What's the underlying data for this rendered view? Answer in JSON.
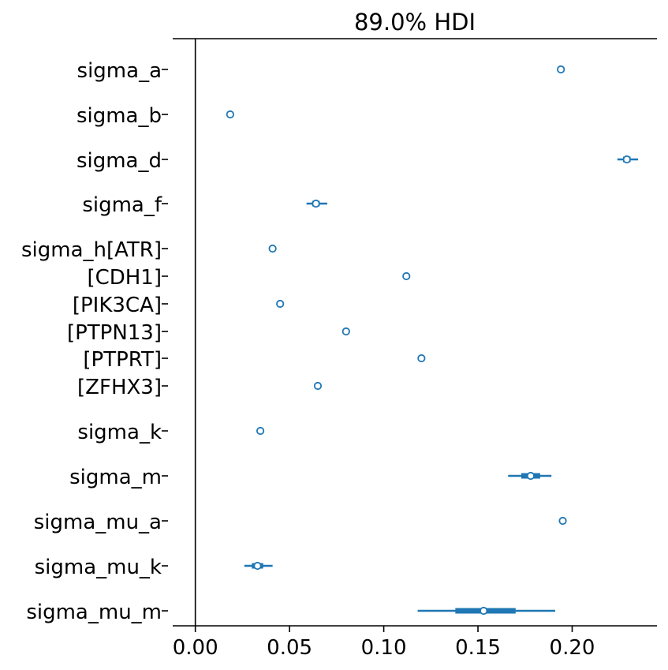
{
  "chart_data": {
    "type": "forest",
    "title": "89.0% HDI",
    "xlim": [
      -0.012,
      0.245
    ],
    "x_ticks": [
      0.0,
      0.05,
      0.1,
      0.15,
      0.2
    ],
    "x_tick_labels": [
      "0.00",
      "0.05",
      "0.10",
      "0.15",
      "0.20"
    ],
    "reference_line_x": 0.0,
    "grid": false,
    "series_color": "#1f77b4",
    "rows": [
      {
        "label": "sigma_a",
        "mean": 0.194,
        "hdi": [
          0.1935,
          0.1945
        ],
        "iqr": [
          0.1938,
          0.1942
        ]
      },
      {
        "label": "sigma_b",
        "mean": 0.0185,
        "hdi": [
          0.018,
          0.019
        ],
        "iqr": [
          0.0183,
          0.0187
        ]
      },
      {
        "label": "sigma_d",
        "mean": 0.229,
        "hdi": [
          0.224,
          0.235
        ],
        "iqr": [
          0.227,
          0.231
        ]
      },
      {
        "label": "sigma_f",
        "mean": 0.064,
        "hdi": [
          0.059,
          0.07
        ],
        "iqr": [
          0.062,
          0.066
        ]
      },
      {
        "label": "sigma_h[ATR]",
        "mean": 0.041,
        "hdi": [
          0.0405,
          0.0415
        ],
        "iqr": [
          0.0408,
          0.0412
        ]
      },
      {
        "label": "[CDH1]",
        "mean": 0.112,
        "hdi": [
          0.1115,
          0.1125
        ],
        "iqr": [
          0.1118,
          0.1122
        ]
      },
      {
        "label": "[PIK3CA]",
        "mean": 0.045,
        "hdi": [
          0.0445,
          0.0455
        ],
        "iqr": [
          0.0448,
          0.0452
        ]
      },
      {
        "label": "[PTPN13]",
        "mean": 0.08,
        "hdi": [
          0.0795,
          0.0805
        ],
        "iqr": [
          0.0798,
          0.0802
        ]
      },
      {
        "label": "[PTPRT]",
        "mean": 0.12,
        "hdi": [
          0.1195,
          0.1205
        ],
        "iqr": [
          0.1198,
          0.1202
        ]
      },
      {
        "label": "[ZFHX3]",
        "mean": 0.065,
        "hdi": [
          0.0645,
          0.0655
        ],
        "iqr": [
          0.0648,
          0.0652
        ]
      },
      {
        "label": "sigma_k",
        "mean": 0.0345,
        "hdi": [
          0.034,
          0.035
        ],
        "iqr": [
          0.0343,
          0.0347
        ]
      },
      {
        "label": "sigma_m",
        "mean": 0.178,
        "hdi": [
          0.166,
          0.189
        ],
        "iqr": [
          0.173,
          0.183
        ]
      },
      {
        "label": "sigma_mu_a",
        "mean": 0.195,
        "hdi": [
          0.1945,
          0.1955
        ],
        "iqr": [
          0.1948,
          0.1952
        ]
      },
      {
        "label": "sigma_mu_k",
        "mean": 0.033,
        "hdi": [
          0.026,
          0.041
        ],
        "iqr": [
          0.03,
          0.036
        ]
      },
      {
        "label": "sigma_mu_m",
        "mean": 0.153,
        "hdi": [
          0.118,
          0.191
        ],
        "iqr": [
          0.138,
          0.17
        ]
      }
    ]
  }
}
